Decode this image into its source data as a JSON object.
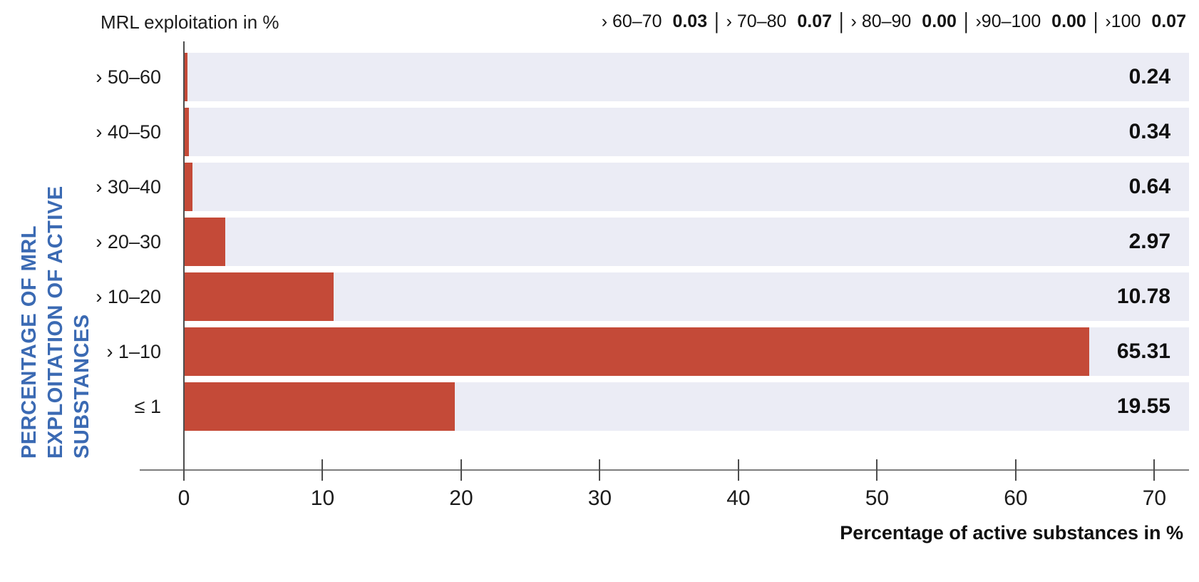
{
  "title": "MRL exploitation in %",
  "overflow_legend": {
    "separator": "|",
    "items": [
      {
        "range": "› 60–70",
        "value": "0.03"
      },
      {
        "range": "› 70–80",
        "value": "0.07"
      },
      {
        "range": "› 80–90",
        "value": "0.00"
      },
      {
        "range": "›90–100",
        "value": "0.00"
      },
      {
        "range": "›100",
        "value": "0.07"
      }
    ]
  },
  "y_axis_label": {
    "lines": [
      "PERCENTAGE OF MRL",
      "EXPLOITATION OF ACTIVE",
      "SUBSTANCES"
    ]
  },
  "x_axis_label": "Percentage of active substances in %",
  "colors": {
    "bar": "#c44a38",
    "track": "#ebecf5",
    "y_axis_label_blue": "#3b6ab3",
    "axis_line": "#7d7d7d",
    "text": "#1c1c1c"
  },
  "chart_data": {
    "type": "bar",
    "orientation": "horizontal",
    "title": "MRL exploitation in %",
    "xlabel": "Percentage of active substances in %",
    "ylabel": "PERCENTAGE OF MRL EXPLOITATION OF ACTIVE SUBSTANCES",
    "categories": [
      "› 50–60",
      "› 40–50",
      "› 30–40",
      "› 20–30",
      "› 10–20",
      "› 1–10",
      "≤ 1"
    ],
    "values": [
      0.24,
      0.34,
      0.64,
      2.97,
      10.78,
      65.31,
      19.55
    ],
    "value_labels": [
      "0.24",
      "0.34",
      "0.64",
      "2.97",
      "10.78",
      "65.31",
      "19.55"
    ],
    "x_ticks": [
      0,
      10,
      20,
      30,
      40,
      50,
      60,
      70
    ],
    "xlim": [
      0,
      70
    ],
    "track_max": 72.5,
    "grid": false,
    "legend_position": "top-right",
    "overflow_bins": [
      {
        "range": "› 60–70",
        "value": 0.03
      },
      {
        "range": "› 70–80",
        "value": 0.07
      },
      {
        "range": "› 80–90",
        "value": 0.0
      },
      {
        "range": "›90–100",
        "value": 0.0
      },
      {
        "range": "›100",
        "value": 0.07
      }
    ],
    "bar_color": "#c44a38",
    "track_color": "#ebecf5"
  }
}
